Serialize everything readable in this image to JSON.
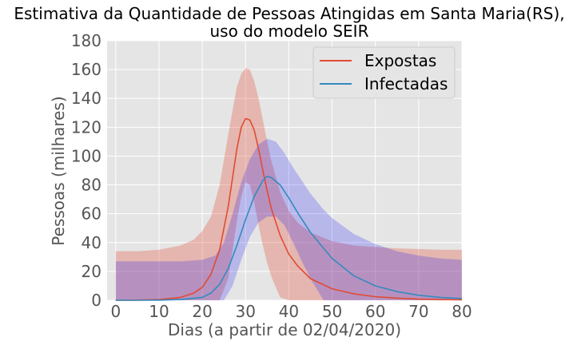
{
  "chart_data": {
    "type": "line",
    "title_line1": "Estimativa da Quantidade de Pessoas Atingidas em Santa Maria(RS),",
    "title_line2": "uso do modelo SEIR",
    "xlabel": "Dias (a partir de 02/04/2020)",
    "ylabel": "Pessoas (milhares)",
    "xlim": [
      -2,
      80
    ],
    "ylim": [
      0,
      180
    ],
    "xticks": [
      0,
      10,
      20,
      30,
      40,
      50,
      60,
      70,
      80
    ],
    "yticks": [
      0,
      20,
      40,
      60,
      80,
      100,
      120,
      140,
      160,
      180
    ],
    "grid": true,
    "legend_position": "upper right",
    "background": "#e5e5e5",
    "series": [
      {
        "name": "Expostas",
        "color": "#e24a33",
        "x": [
          0,
          5,
          10,
          15,
          18,
          20,
          22,
          24,
          26,
          27,
          28,
          29,
          30,
          31,
          32,
          33,
          34,
          35,
          36,
          38,
          40,
          42,
          45,
          50,
          55,
          60,
          65,
          70,
          75,
          80
        ],
        "values": [
          0,
          0.1,
          0.5,
          2,
          5,
          9,
          18,
          35,
          65,
          85,
          105,
          120,
          126,
          125,
          118,
          105,
          90,
          76,
          63,
          45,
          32,
          24,
          15,
          8,
          4.5,
          2.5,
          1.5,
          0.8,
          0.5,
          0.3
        ]
      },
      {
        "name": "Infectadas",
        "color": "#348abd",
        "x": [
          0,
          5,
          10,
          15,
          20,
          22,
          24,
          26,
          28,
          30,
          32,
          34,
          35,
          36,
          38,
          40,
          42,
          45,
          50,
          55,
          60,
          65,
          70,
          75,
          80
        ],
        "values": [
          0,
          0,
          0.1,
          0.5,
          2,
          5,
          11,
          22,
          38,
          56,
          72,
          83,
          86,
          85,
          80,
          71,
          61,
          47,
          29,
          17,
          10,
          6,
          3.5,
          2,
          1.2
        ]
      }
    ],
    "bands": [
      {
        "series": "Expostas",
        "color": "#e24a33",
        "opacity": 0.3,
        "x": [
          0,
          5,
          10,
          15,
          18,
          20,
          22,
          24,
          26,
          28,
          29,
          30,
          31,
          32,
          33,
          34,
          35,
          36,
          38,
          40,
          42,
          45,
          50,
          55,
          60,
          65,
          70,
          75,
          80
        ],
        "upper": [
          34,
          34,
          35,
          38,
          42,
          48,
          58,
          80,
          115,
          148,
          157,
          161,
          160,
          152,
          140,
          125,
          110,
          96,
          75,
          62,
          54,
          47,
          41,
          38,
          37,
          36,
          35.5,
          35,
          35
        ],
        "lower": [
          0,
          0,
          0,
          0,
          0,
          0,
          0,
          0,
          15,
          55,
          72,
          82,
          80,
          68,
          52,
          38,
          26,
          16,
          2,
          0,
          0,
          0,
          0,
          0,
          0,
          0,
          0,
          0,
          0
        ]
      },
      {
        "series": "Infectadas",
        "color": "#0000ff",
        "opacity": 0.2,
        "x": [
          0,
          5,
          10,
          15,
          20,
          23,
          25,
          27,
          29,
          31,
          33,
          35,
          37,
          39,
          41,
          43,
          45,
          48,
          50,
          55,
          60,
          65,
          70,
          75,
          80
        ],
        "upper": [
          27,
          27,
          27,
          27,
          28,
          31,
          40,
          60,
          82,
          98,
          108,
          112,
          110,
          102,
          92,
          83,
          74,
          63,
          57,
          46,
          39,
          34,
          31,
          29,
          28
        ],
        "lower": [
          0,
          0,
          0,
          0,
          0,
          0,
          0,
          10,
          28,
          44,
          54,
          58,
          58,
          52,
          40,
          27,
          15,
          0,
          0,
          0,
          0,
          0,
          0,
          0,
          0
        ]
      }
    ]
  }
}
